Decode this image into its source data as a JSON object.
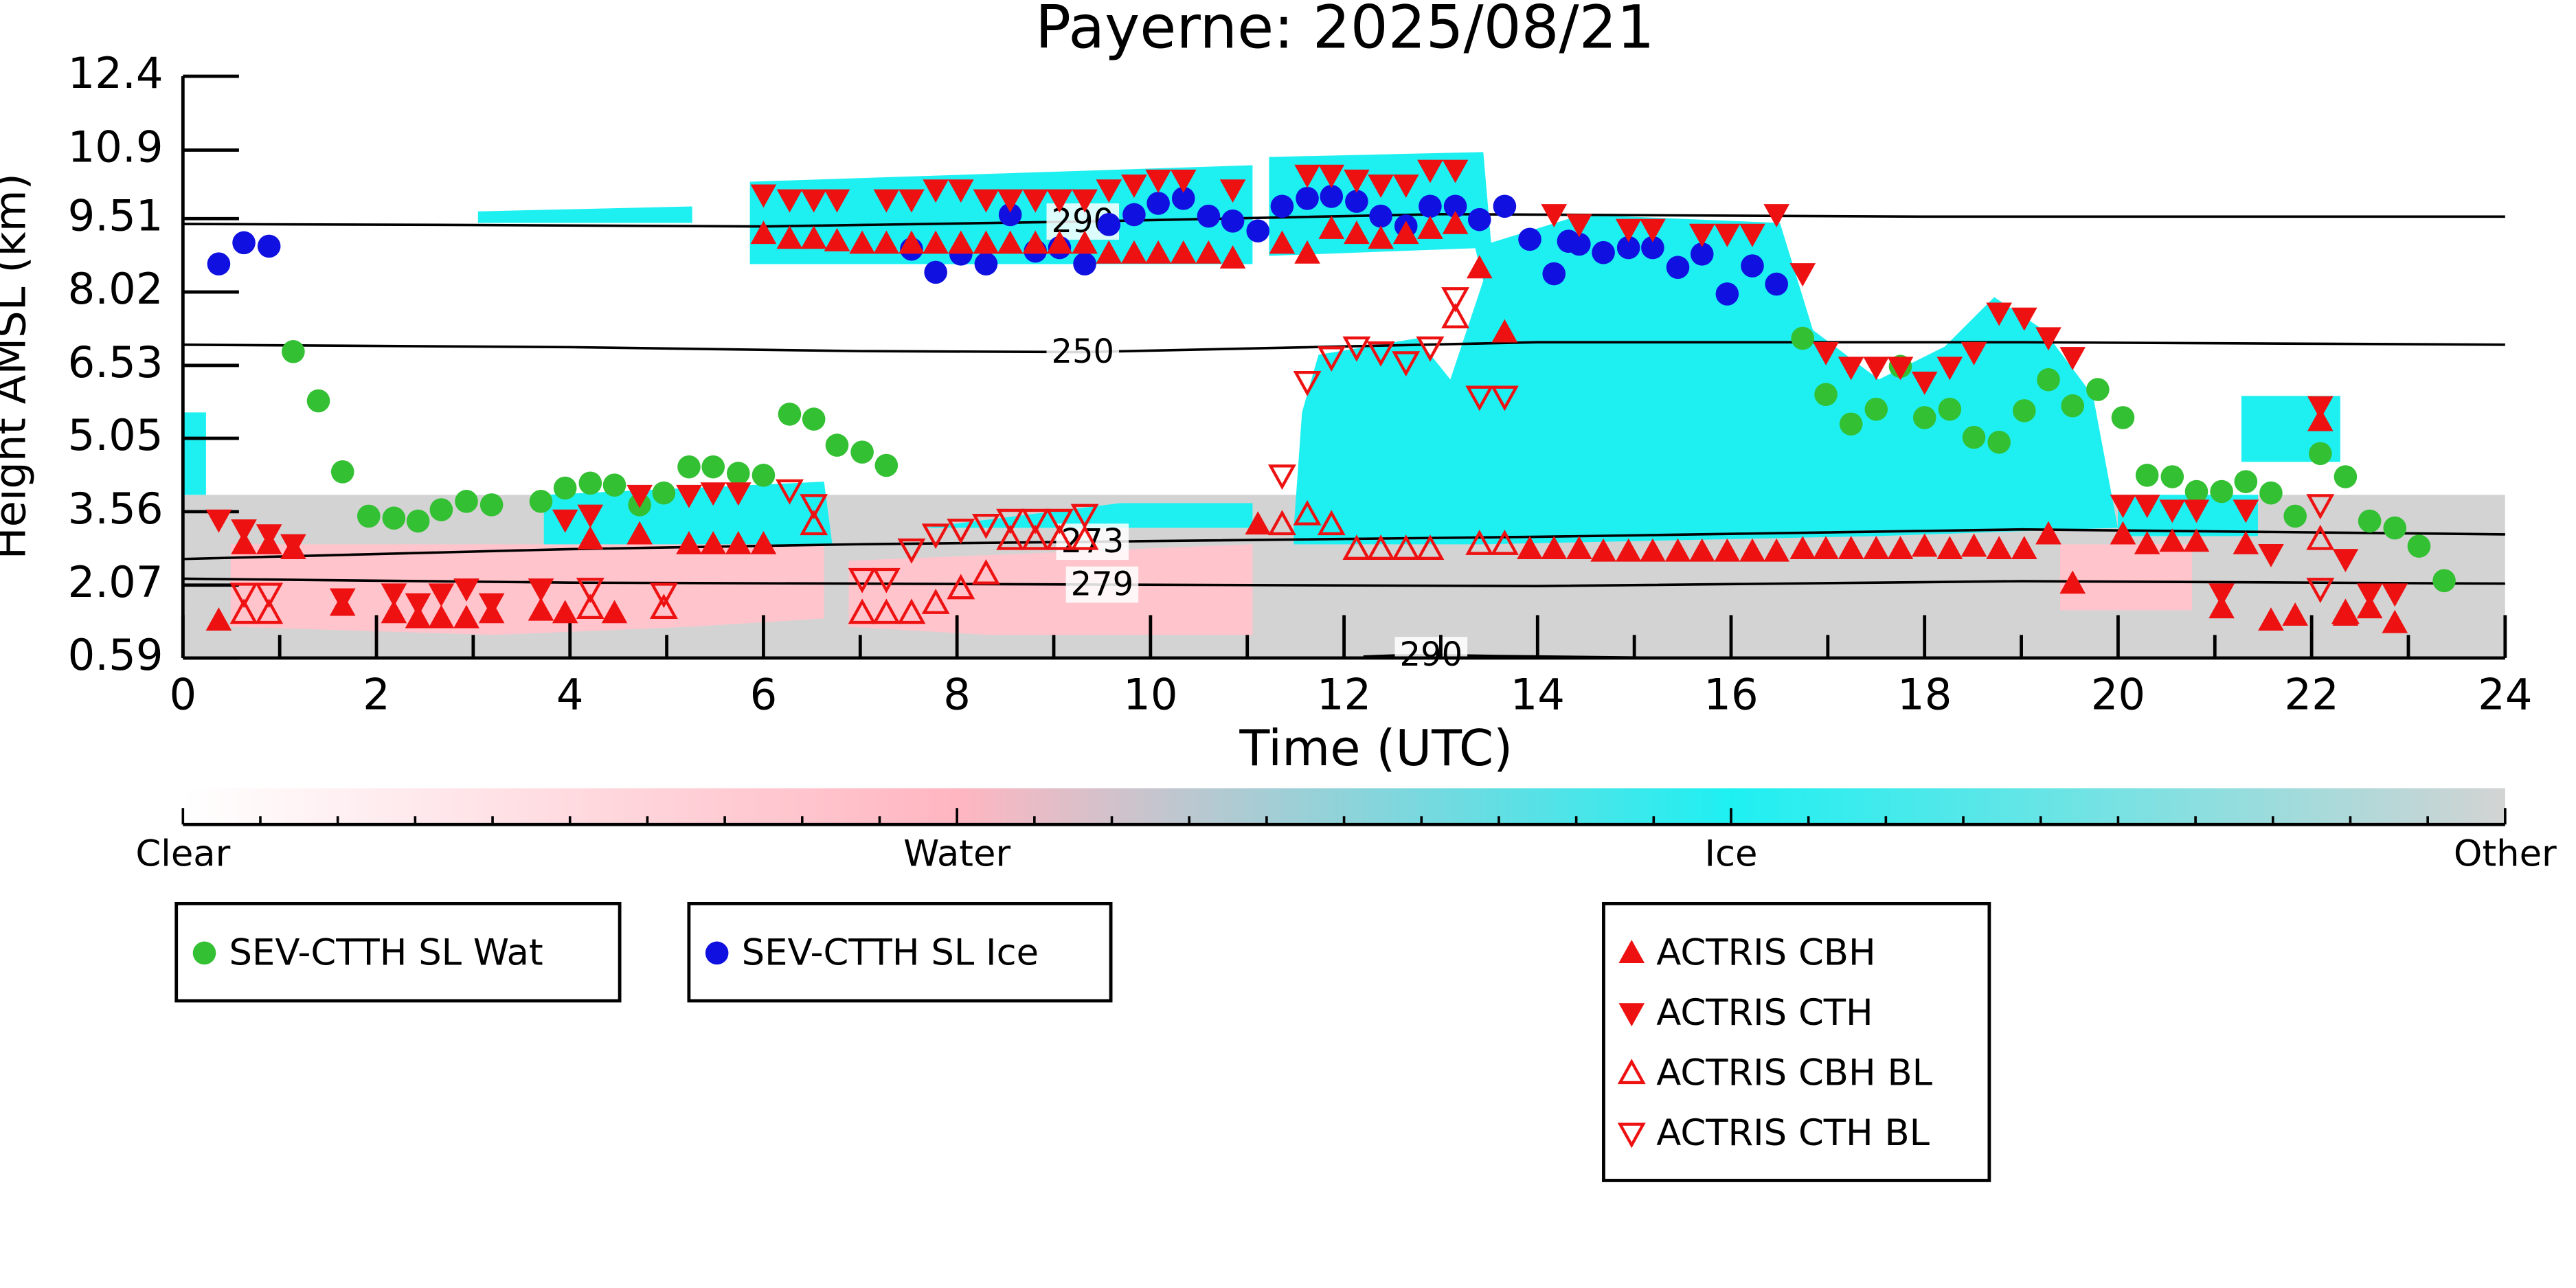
{
  "chart_data": {
    "type": "scatter",
    "title": "Payerne: 2025/08/21",
    "xlabel": "Time (UTC)",
    "ylabel": "Height AMSL (km)",
    "xlim": [
      0,
      24
    ],
    "xticks": [
      0,
      2,
      4,
      6,
      8,
      10,
      12,
      14,
      16,
      18,
      20,
      22,
      24
    ],
    "ylim": [
      0.59,
      12.4
    ],
    "yticks": [
      0.59,
      2.07,
      3.56,
      5.05,
      6.53,
      8.02,
      9.51,
      10.9,
      12.4
    ],
    "colorbar": {
      "labels": [
        "Clear",
        "Water",
        "Ice",
        "Other"
      ],
      "colors": [
        "#ffffff",
        "#ffb6c1",
        "#1ef0f2",
        "#d3d3d3"
      ]
    },
    "contours": [
      {
        "label": "290",
        "x": [
          0,
          3,
          6,
          9.3,
          13,
          18,
          24
        ],
        "y": [
          9.4,
          9.38,
          9.35,
          9.45,
          9.6,
          9.55,
          9.55
        ]
      },
      {
        "label": "250",
        "x": [
          0,
          4,
          7,
          9.3,
          14,
          19,
          24
        ],
        "y": [
          6.95,
          6.9,
          6.82,
          6.8,
          7.0,
          7.0,
          6.95
        ]
      },
      {
        "label": "273",
        "x": [
          0,
          4,
          7,
          9.4,
          14,
          19,
          24
        ],
        "y": [
          2.6,
          2.8,
          2.9,
          2.95,
          3.05,
          3.2,
          3.1
        ]
      },
      {
        "label": "279",
        "x": [
          0,
          4,
          7,
          9.5,
          14,
          19,
          24
        ],
        "y": [
          2.2,
          2.12,
          2.1,
          2.08,
          2.05,
          2.15,
          2.1
        ]
      },
      {
        "label": "290",
        "x": [
          12.2,
          12.5,
          12.9,
          13.6,
          15.5
        ],
        "y": [
          0.62,
          0.64,
          0.65,
          0.63,
          0.59
        ]
      }
    ],
    "series": [
      {
        "name": "SEV-CTTH SL Wat",
        "color": "#33c033",
        "marker": "circle",
        "x": [
          1.14,
          1.4,
          1.65,
          1.92,
          2.18,
          2.43,
          2.67,
          2.93,
          3.19,
          3.7,
          3.95,
          4.21,
          4.46,
          4.72,
          4.97,
          5.23,
          5.48,
          5.74,
          6.0,
          6.27,
          6.52,
          6.76,
          7.02,
          7.27,
          16.74,
          16.98,
          17.24,
          17.5,
          17.75,
          18.0,
          18.26,
          18.51,
          18.77,
          19.03,
          19.28,
          19.53,
          19.79,
          20.05,
          20.3,
          20.56,
          20.81,
          21.07,
          21.32,
          21.58,
          21.83,
          22.09,
          22.35,
          22.6,
          22.86,
          23.11,
          23.37
        ],
        "y": [
          6.81,
          5.81,
          4.37,
          3.47,
          3.43,
          3.37,
          3.6,
          3.77,
          3.7,
          3.77,
          4.04,
          4.14,
          4.1,
          3.7,
          3.94,
          4.47,
          4.47,
          4.34,
          4.3,
          5.54,
          5.44,
          4.91,
          4.77,
          4.5,
          7.08,
          5.94,
          5.34,
          5.64,
          6.51,
          5.47,
          5.64,
          5.07,
          4.97,
          5.61,
          6.24,
          5.71,
          6.04,
          5.47,
          4.3,
          4.27,
          3.97,
          3.97,
          4.17,
          3.94,
          3.47,
          4.74,
          4.27,
          3.37,
          3.23,
          2.86,
          2.16
        ]
      },
      {
        "name": "SEV-CTTH SL Ice",
        "color": "#1010e0",
        "marker": "circle",
        "x": [
          0.37,
          0.63,
          0.89,
          7.53,
          7.78,
          8.04,
          8.3,
          8.55,
          8.81,
          9.06,
          9.32,
          9.57,
          9.83,
          10.08,
          10.34,
          10.6,
          10.85,
          11.11,
          11.36,
          11.62,
          11.87,
          12.13,
          12.38,
          12.64,
          12.89,
          13.15,
          13.4,
          13.66,
          13.92,
          14.17,
          14.32,
          14.43,
          14.68,
          14.94,
          15.19,
          15.45,
          15.7,
          15.96,
          16.22,
          16.47
        ],
        "y": [
          8.59,
          9.02,
          8.95,
          8.89,
          8.42,
          8.79,
          8.59,
          9.59,
          8.85,
          8.92,
          8.59,
          9.39,
          9.59,
          9.82,
          9.92,
          9.56,
          9.46,
          9.26,
          9.76,
          9.92,
          9.96,
          9.86,
          9.56,
          9.36,
          9.76,
          9.76,
          9.49,
          9.76,
          9.09,
          8.39,
          9.05,
          8.99,
          8.82,
          8.92,
          8.92,
          8.52,
          8.79,
          7.98,
          8.55,
          8.18
        ]
      },
      {
        "name": "ACTRIS CBH",
        "color": "#ee1111",
        "marker": "tri-up-filled",
        "x": [
          0.37,
          0.63,
          0.89,
          1.14,
          1.65,
          2.18,
          2.43,
          2.67,
          2.93,
          3.19,
          3.7,
          3.95,
          4.21,
          4.46,
          4.72,
          5.23,
          5.48,
          5.74,
          6.0,
          6.0,
          6.27,
          6.52,
          6.76,
          7.02,
          7.27,
          7.53,
          7.78,
          8.04,
          8.3,
          8.55,
          8.81,
          9.06,
          9.32,
          9.57,
          9.83,
          10.08,
          10.34,
          10.6,
          10.85,
          11.11,
          11.36,
          11.62,
          11.87,
          12.13,
          12.38,
          12.64,
          12.89,
          13.15,
          13.4,
          13.66,
          13.92,
          14.17,
          14.43,
          14.68,
          14.94,
          15.19,
          15.45,
          15.7,
          15.96,
          16.22,
          16.47,
          16.74,
          16.98,
          17.24,
          17.5,
          17.75,
          18.0,
          18.26,
          18.51,
          18.77,
          19.03,
          19.28,
          19.53,
          20.05,
          20.3,
          20.56,
          20.81,
          21.07,
          21.32,
          21.58,
          21.83,
          22.09,
          22.35,
          22.6,
          22.86
        ],
        "y": [
          1.35,
          2.9,
          2.9,
          2.8,
          1.65,
          1.5,
          1.4,
          1.4,
          1.4,
          1.5,
          1.55,
          1.5,
          3.0,
          1.5,
          3.1,
          2.9,
          2.9,
          2.9,
          2.9,
          9.2,
          9.1,
          9.1,
          9.05,
          9.0,
          9.0,
          9.0,
          9.0,
          9.0,
          9.0,
          9.0,
          9.0,
          9.0,
          9.0,
          8.8,
          8.8,
          8.8,
          8.8,
          8.8,
          8.7,
          3.3,
          9.0,
          8.8,
          9.3,
          9.2,
          9.1,
          9.2,
          9.3,
          9.4,
          8.5,
          7.2,
          2.8,
          2.8,
          2.8,
          2.75,
          2.75,
          2.75,
          2.75,
          2.75,
          2.75,
          2.75,
          2.75,
          2.8,
          2.8,
          2.8,
          2.8,
          2.8,
          2.85,
          2.8,
          2.85,
          2.8,
          2.8,
          3.1,
          2.1,
          3.1,
          2.9,
          2.95,
          2.95,
          1.6,
          2.9,
          1.35,
          1.45,
          5.4,
          1.45,
          1.6,
          1.3
        ]
      },
      {
        "name": "ACTRIS CTH",
        "color": "#ee1111",
        "marker": "tri-down-filled",
        "x": [
          0.37,
          0.63,
          0.89,
          1.14,
          1.65,
          2.18,
          2.43,
          2.67,
          2.93,
          3.19,
          3.7,
          3.95,
          4.21,
          4.72,
          5.23,
          5.48,
          5.74,
          6.0,
          6.27,
          6.52,
          6.76,
          7.27,
          7.53,
          7.78,
          8.04,
          8.3,
          8.55,
          8.81,
          9.06,
          9.32,
          9.57,
          9.83,
          10.08,
          10.34,
          10.85,
          11.62,
          11.87,
          12.13,
          12.38,
          12.64,
          12.89,
          13.15,
          14.17,
          14.43,
          14.94,
          15.19,
          15.7,
          15.96,
          16.22,
          16.47,
          16.74,
          16.98,
          17.24,
          17.5,
          17.75,
          18.0,
          18.26,
          18.51,
          18.77,
          19.03,
          19.28,
          19.53,
          20.05,
          20.3,
          20.56,
          20.81,
          21.07,
          21.32,
          21.58,
          22.09,
          22.35,
          22.6,
          22.86
        ],
        "y": [
          3.4,
          3.2,
          3.1,
          2.9,
          1.8,
          1.9,
          1.7,
          1.9,
          2.0,
          1.7,
          2.0,
          3.4,
          3.5,
          3.9,
          3.9,
          3.95,
          3.95,
          10.0,
          9.9,
          9.9,
          9.9,
          9.9,
          9.9,
          10.1,
          10.1,
          9.9,
          9.9,
          9.9,
          9.9,
          9.9,
          10.1,
          10.2,
          10.3,
          10.3,
          10.1,
          10.4,
          10.4,
          10.3,
          10.2,
          10.2,
          10.5,
          10.5,
          9.6,
          9.4,
          9.3,
          9.3,
          9.2,
          9.2,
          9.2,
          9.6,
          8.4,
          6.8,
          6.5,
          6.5,
          6.5,
          6.2,
          6.5,
          6.8,
          7.6,
          7.5,
          7.1,
          6.7,
          3.7,
          3.7,
          3.6,
          3.6,
          1.9,
          3.6,
          2.7,
          5.7,
          2.6,
          1.9,
          1.9
        ]
      },
      {
        "name": "ACTRIS CBH BL",
        "color": "#ee1111",
        "marker": "tri-up-open",
        "x": [
          0.63,
          0.89,
          4.21,
          4.97,
          6.52,
          7.02,
          7.27,
          7.53,
          7.78,
          8.04,
          8.3,
          8.55,
          8.81,
          9.06,
          9.32,
          11.36,
          11.62,
          11.87,
          12.13,
          12.38,
          12.64,
          12.89,
          13.15,
          13.4,
          13.66,
          22.09,
          22.35
        ],
        "y": [
          1.5,
          1.5,
          1.6,
          1.6,
          3.3,
          1.5,
          1.5,
          1.5,
          1.7,
          2.0,
          2.3,
          3.0,
          3.0,
          3.0,
          3.0,
          3.3,
          3.5,
          3.3,
          2.8,
          2.8,
          2.8,
          2.8,
          7.5,
          2.9,
          2.9,
          3.0,
          1.5
        ]
      },
      {
        "name": "ACTRIS CTH BL",
        "color": "#ee1111",
        "marker": "tri-down-open",
        "x": [
          0.63,
          0.89,
          4.21,
          4.97,
          6.27,
          6.52,
          7.02,
          7.27,
          7.53,
          7.78,
          8.04,
          8.3,
          8.55,
          8.81,
          9.06,
          9.32,
          11.36,
          11.62,
          11.87,
          12.13,
          12.38,
          12.64,
          12.89,
          13.15,
          13.4,
          13.66,
          22.09,
          22.09
        ],
        "y": [
          1.9,
          1.9,
          2.0,
          1.9,
          4.0,
          3.7,
          2.2,
          2.2,
          2.8,
          3.1,
          3.2,
          3.3,
          3.4,
          3.4,
          3.4,
          3.5,
          4.3,
          6.2,
          6.7,
          6.9,
          6.8,
          6.6,
          6.9,
          7.9,
          5.9,
          5.9,
          2.0,
          3.7
        ]
      }
    ]
  }
}
